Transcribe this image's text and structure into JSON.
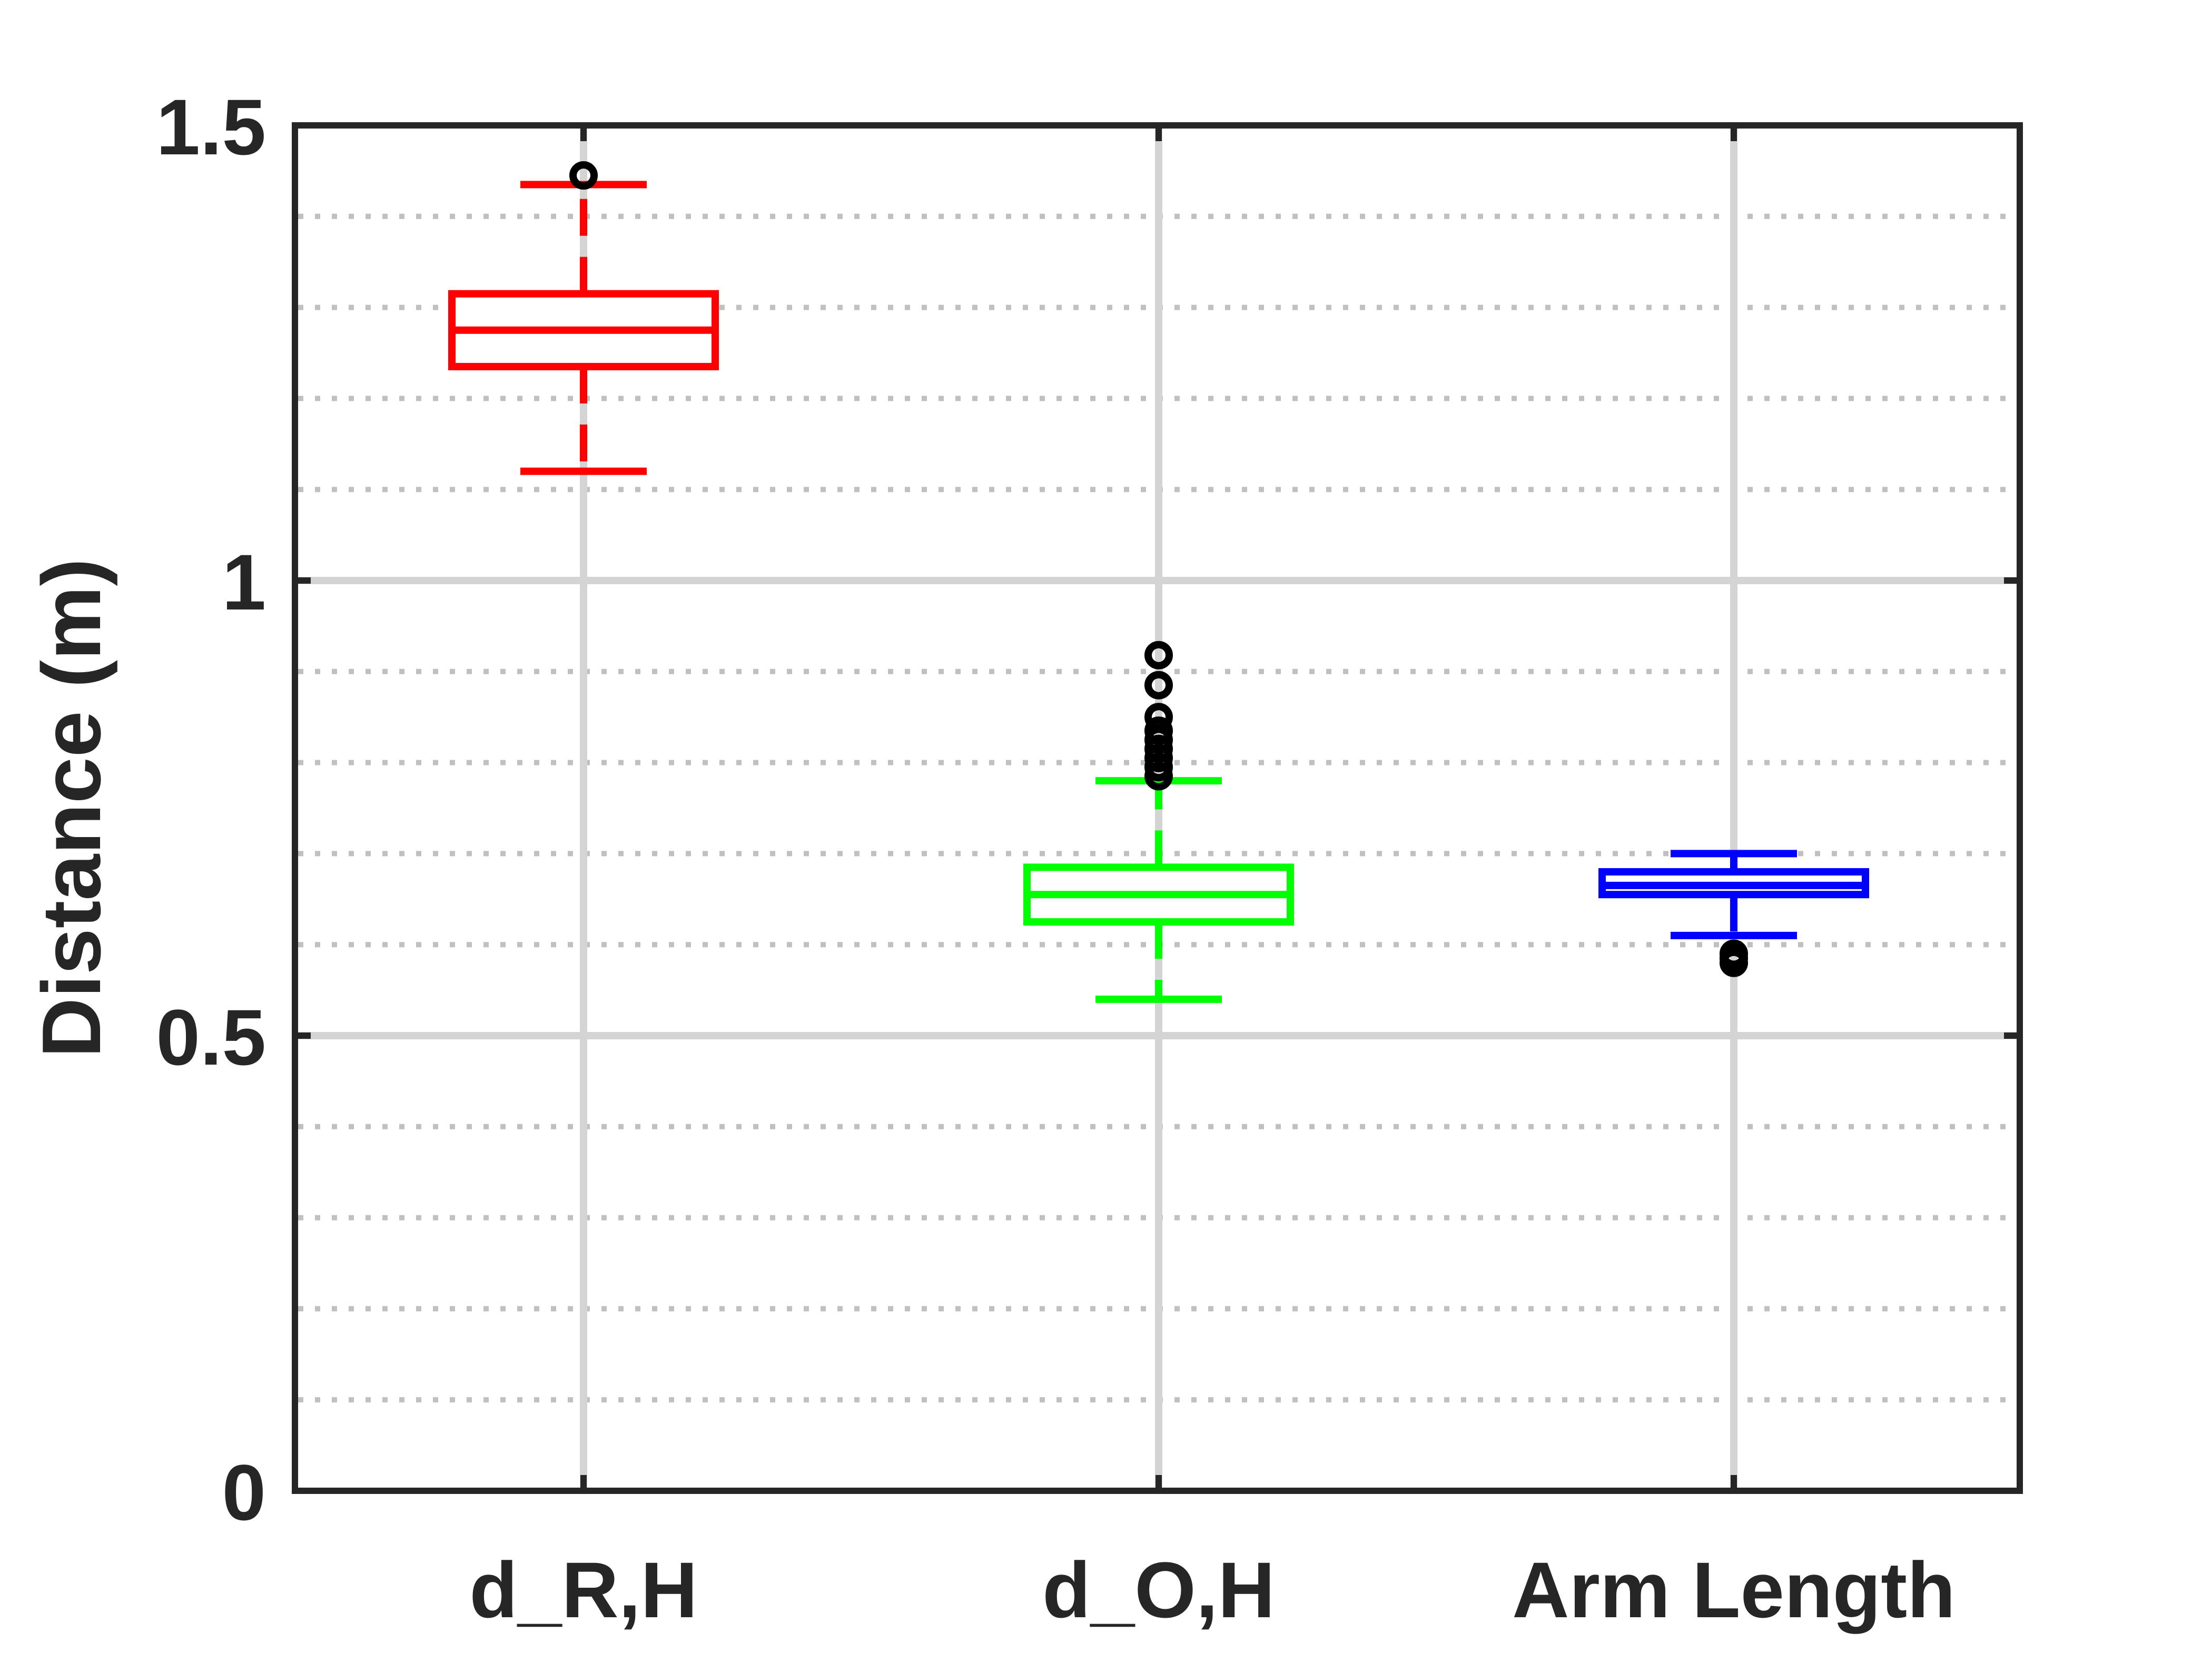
{
  "chart_data": {
    "type": "box",
    "title": "",
    "xlabel": "",
    "ylabel": "Distance (m)",
    "ylim": [
      0,
      1.5
    ],
    "yticks": [
      0,
      0.5,
      1,
      1.5
    ],
    "ytick_labels": [
      "0",
      "0.5",
      "1",
      "1.5"
    ],
    "minor_grid_step": 0.1,
    "grid": true,
    "categories": [
      "d_R,H",
      "d_O,H",
      "Arm Length"
    ],
    "colors": {
      "d_R,H": "#ff0000",
      "d_O,H": "#00ff00",
      "Arm Length": "#0000ff",
      "outlier": "#000000",
      "axis": "#262626",
      "major_grid": "#d4d4d4",
      "minor_grid": "#c0c0c0"
    },
    "boxes": [
      {
        "label": "d_R,H",
        "whisker_low": 1.12,
        "q1": 1.235,
        "median": 1.275,
        "q3": 1.315,
        "whisker_high": 1.435,
        "outliers": [
          1.445
        ]
      },
      {
        "label": "d_O,H",
        "whisker_low": 0.54,
        "q1": 0.625,
        "median": 0.655,
        "q3": 0.685,
        "whisker_high": 0.78,
        "outliers": [
          0.785,
          0.795,
          0.805,
          0.815,
          0.825,
          0.835,
          0.85,
          0.885,
          0.918
        ]
      },
      {
        "label": "Arm Length",
        "whisker_low": 0.61,
        "q1": 0.655,
        "median": 0.665,
        "q3": 0.68,
        "whisker_high": 0.7,
        "outliers": [
          0.58,
          0.585,
          0.59
        ]
      }
    ]
  }
}
